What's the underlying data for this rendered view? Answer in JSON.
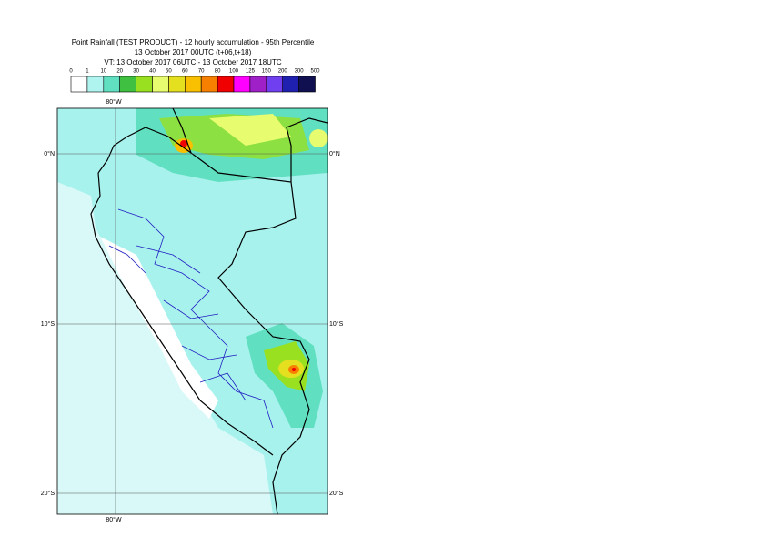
{
  "header": {
    "lines": [
      "Point Rainfall (TEST PRODUCT) - 12 hourly accumulation - 95th Percentile",
      "13 October 2017 00UTC (t+06,t+18)",
      "VT: 13 October 2017 06UTC - 13 October 2017 18UTC"
    ]
  },
  "legend": {
    "labels": [
      "0",
      "1",
      "10",
      "20",
      "30",
      "40",
      "50",
      "60",
      "70",
      "80",
      "100",
      "125",
      "150",
      "200",
      "300",
      "500"
    ],
    "colors": [
      "#ffffff",
      "#b0f4f0",
      "#60e0c0",
      "#40c040",
      "#98e020",
      "#e8fc70",
      "#e4e020",
      "#f8c000",
      "#f88000",
      "#f00000",
      "#ff00ff",
      "#a020c8",
      "#7040f0",
      "#2020b0",
      "#101050"
    ]
  },
  "map": {
    "lon_labels": [
      "80°W",
      "80°W"
    ],
    "lat_labels": [
      "0°N",
      "10°S",
      "20°S"
    ]
  }
}
